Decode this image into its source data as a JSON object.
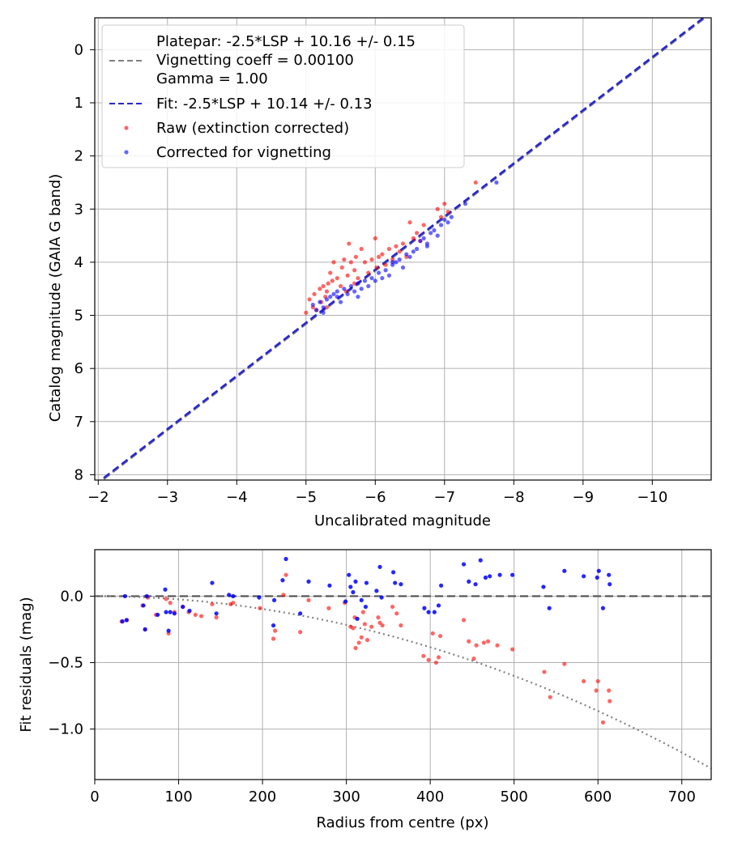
{
  "chart_data": [
    {
      "type": "scatter",
      "xlabel": "Uncalibrated magnitude",
      "ylabel": "Catalog magnitude (GAIA G band)",
      "xlim": [
        -1.95,
        -10.85
      ],
      "ylim": [
        8.1,
        -0.6
      ],
      "xticks": [
        -2,
        -3,
        -4,
        -5,
        -6,
        -7,
        -8,
        -9,
        -10
      ],
      "xtick_labels": [
        "−2",
        "−3",
        "−4",
        "−5",
        "−6",
        "−7",
        "−8",
        "−9",
        "−10"
      ],
      "yticks": [
        0,
        1,
        2,
        3,
        4,
        5,
        6,
        7,
        8
      ],
      "ytick_labels": [
        "0",
        "1",
        "2",
        "3",
        "4",
        "5",
        "6",
        "7",
        "8"
      ],
      "grid": true,
      "legend_position": "top-left",
      "legend": [
        {
          "label": "Platepar: -2.5*LSP + 10.16 +/- 0.15",
          "style": "dashed",
          "color": "#808080"
        },
        {
          "label": "Vignetting coeff = 0.00100",
          "style": "none",
          "color": "#808080"
        },
        {
          "label": "Gamma = 1.00",
          "style": "none",
          "color": "#808080"
        },
        {
          "label": "Fit: -2.5*LSP + 10.14 +/- 0.13",
          "style": "dashed",
          "color": "#2727d0"
        },
        {
          "label": "Raw (extinction corrected)",
          "style": "marker",
          "color": "#ff0000"
        },
        {
          "label": "Corrected for vignetting",
          "style": "marker",
          "color": "#0000ff"
        }
      ],
      "series": [
        {
          "name": "Platepar",
          "kind": "line",
          "slope": 1,
          "intercept": 10.16,
          "color": "#808080"
        },
        {
          "name": "Fit",
          "kind": "line",
          "slope": 1,
          "intercept": 10.14,
          "color": "#2727d0"
        },
        {
          "name": "Raw (extinction corrected)",
          "kind": "scatter",
          "color": "#ff0000",
          "points": [
            [
              -5.0,
              4.95
            ],
            [
              -5.05,
              4.7
            ],
            [
              -5.1,
              4.85
            ],
            [
              -5.12,
              4.6
            ],
            [
              -5.15,
              4.9
            ],
            [
              -5.2,
              4.5
            ],
            [
              -5.22,
              4.75
            ],
            [
              -5.25,
              4.45
            ],
            [
              -5.28,
              4.65
            ],
            [
              -5.3,
              4.55
            ],
            [
              -5.32,
              4.4
            ],
            [
              -5.35,
              4.2
            ],
            [
              -5.38,
              4.35
            ],
            [
              -5.4,
              4.0
            ],
            [
              -5.45,
              4.3
            ],
            [
              -5.5,
              4.45
            ],
            [
              -5.52,
              4.1
            ],
            [
              -5.55,
              3.95
            ],
            [
              -5.58,
              4.55
            ],
            [
              -5.6,
              4.25
            ],
            [
              -5.62,
              3.65
            ],
            [
              -5.65,
              4.0
            ],
            [
              -5.7,
              4.15
            ],
            [
              -5.72,
              3.9
            ],
            [
              -5.75,
              4.3
            ],
            [
              -5.8,
              3.75
            ],
            [
              -5.85,
              4.0
            ],
            [
              -5.9,
              4.2
            ],
            [
              -5.95,
              3.95
            ],
            [
              -6.0,
              3.55
            ],
            [
              -6.02,
              4.1
            ],
            [
              -6.05,
              3.9
            ],
            [
              -6.1,
              3.85
            ],
            [
              -6.15,
              4.05
            ],
            [
              -6.2,
              3.75
            ],
            [
              -6.25,
              3.95
            ],
            [
              -6.3,
              3.7
            ],
            [
              -6.35,
              3.8
            ],
            [
              -6.4,
              3.65
            ],
            [
              -6.45,
              3.9
            ],
            [
              -6.5,
              3.25
            ],
            [
              -6.55,
              3.55
            ],
            [
              -6.6,
              3.45
            ],
            [
              -6.65,
              3.6
            ],
            [
              -6.7,
              3.3
            ],
            [
              -6.9,
              3.0
            ],
            [
              -6.95,
              3.15
            ],
            [
              -7.0,
              2.9
            ],
            [
              -7.05,
              3.05
            ],
            [
              -7.45,
              2.5
            ],
            [
              -5.3,
              4.85
            ],
            [
              -5.7,
              4.4
            ]
          ]
        },
        {
          "name": "Corrected for vignetting",
          "kind": "scatter",
          "color": "#0000ff",
          "points": [
            [
              -5.1,
              4.8
            ],
            [
              -5.15,
              4.9
            ],
            [
              -5.2,
              4.75
            ],
            [
              -5.25,
              4.95
            ],
            [
              -5.3,
              4.7
            ],
            [
              -5.35,
              4.65
            ],
            [
              -5.4,
              4.6
            ],
            [
              -5.45,
              4.55
            ],
            [
              -5.5,
              4.75
            ],
            [
              -5.55,
              4.5
            ],
            [
              -5.6,
              4.6
            ],
            [
              -5.65,
              4.45
            ],
            [
              -5.7,
              4.55
            ],
            [
              -5.75,
              4.4
            ],
            [
              -5.8,
              4.5
            ],
            [
              -5.85,
              4.35
            ],
            [
              -5.9,
              4.45
            ],
            [
              -5.95,
              4.3
            ],
            [
              -6.0,
              4.35
            ],
            [
              -6.05,
              4.2
            ],
            [
              -6.1,
              4.3
            ],
            [
              -6.15,
              4.15
            ],
            [
              -6.2,
              4.25
            ],
            [
              -6.25,
              4.05
            ],
            [
              -6.3,
              4.0
            ],
            [
              -6.35,
              3.95
            ],
            [
              -6.4,
              4.1
            ],
            [
              -6.45,
              3.85
            ],
            [
              -6.5,
              3.9
            ],
            [
              -6.55,
              3.8
            ],
            [
              -6.6,
              3.75
            ],
            [
              -6.65,
              3.6
            ],
            [
              -6.7,
              3.55
            ],
            [
              -6.75,
              3.65
            ],
            [
              -6.8,
              3.45
            ],
            [
              -6.85,
              3.4
            ],
            [
              -6.9,
              3.5
            ],
            [
              -6.95,
              3.3
            ],
            [
              -7.0,
              3.2
            ],
            [
              -7.05,
              3.25
            ],
            [
              -7.1,
              3.15
            ],
            [
              -7.3,
              2.9
            ],
            [
              -7.75,
              2.5
            ],
            [
              -5.25,
              4.85
            ],
            [
              -5.45,
              4.65
            ],
            [
              -5.75,
              4.65
            ],
            [
              -6.25,
              4.0
            ],
            [
              -6.75,
              3.7
            ]
          ]
        }
      ]
    },
    {
      "type": "scatter",
      "xlabel": "Radius from centre (px)",
      "ylabel": "Fit residuals (mag)",
      "xlim": [
        0,
        735
      ],
      "ylim": [
        -1.38,
        0.35
      ],
      "xticks": [
        0,
        100,
        200,
        300,
        400,
        500,
        600,
        700
      ],
      "xtick_labels": [
        "0",
        "100",
        "200",
        "300",
        "400",
        "500",
        "600",
        "700"
      ],
      "yticks": [
        0.0,
        -0.5,
        -1.0
      ],
      "ytick_labels": [
        "0.0",
        "−0.5",
        "−1.0"
      ],
      "grid": true,
      "series": [
        {
          "name": "zero line",
          "kind": "hline",
          "y": 0,
          "color": "#505050"
        },
        {
          "name": "vignetting model",
          "kind": "curve",
          "coeff": 0.001,
          "color": "#808080"
        },
        {
          "name": "Raw residuals",
          "kind": "scatter",
          "color": "#ff0000",
          "points": [
            [
              32,
              -0.19
            ],
            [
              38,
              -0.18
            ],
            [
              57,
              -0.07
            ],
            [
              60,
              -0.25
            ],
            [
              63,
              -0.01
            ],
            [
              73,
              -0.14
            ],
            [
              85,
              -0.02
            ],
            [
              88,
              -0.28
            ],
            [
              90,
              -0.05
            ],
            [
              95,
              -0.12
            ],
            [
              105,
              -0.08
            ],
            [
              112,
              -0.12
            ],
            [
              120,
              -0.14
            ],
            [
              127,
              -0.15
            ],
            [
              140,
              -0.06
            ],
            [
              145,
              -0.16
            ],
            [
              162,
              -0.06
            ],
            [
              165,
              -0.05
            ],
            [
              197,
              -0.09
            ],
            [
              213,
              -0.32
            ],
            [
              215,
              -0.26
            ],
            [
              225,
              0.01
            ],
            [
              228,
              0.16
            ],
            [
              245,
              -0.27
            ],
            [
              255,
              -0.03
            ],
            [
              279,
              -0.09
            ],
            [
              298,
              -0.05
            ],
            [
              305,
              -0.23
            ],
            [
              308,
              -0.24
            ],
            [
              310,
              -0.16
            ],
            [
              311,
              -0.39
            ],
            [
              315,
              -0.35
            ],
            [
              318,
              -0.31
            ],
            [
              320,
              -0.12
            ],
            [
              322,
              -0.21
            ],
            [
              325,
              -0.33
            ],
            [
              330,
              -0.23
            ],
            [
              338,
              -0.16
            ],
            [
              340,
              -0.2
            ],
            [
              343,
              -0.22
            ],
            [
              355,
              -0.08
            ],
            [
              360,
              -0.13
            ],
            [
              365,
              -0.22
            ],
            [
              392,
              -0.45
            ],
            [
              398,
              -0.48
            ],
            [
              403,
              -0.28
            ],
            [
              407,
              -0.5
            ],
            [
              410,
              -0.46
            ],
            [
              412,
              -0.3
            ],
            [
              440,
              -0.18
            ],
            [
              446,
              -0.34
            ],
            [
              452,
              -0.47
            ],
            [
              455,
              -0.37
            ],
            [
              464,
              -0.35
            ],
            [
              469,
              -0.34
            ],
            [
              480,
              -0.37
            ],
            [
              498,
              -0.4
            ],
            [
              536,
              -0.57
            ],
            [
              543,
              -0.76
            ],
            [
              560,
              -0.51
            ],
            [
              583,
              -0.64
            ],
            [
              598,
              -0.71
            ],
            [
              600,
              -0.64
            ],
            [
              606,
              -0.95
            ],
            [
              613,
              -0.71
            ],
            [
              614,
              -0.79
            ]
          ]
        },
        {
          "name": "Corrected residuals",
          "kind": "scatter",
          "color": "#0000ff",
          "points": [
            [
              36,
              0.0
            ],
            [
              38,
              -0.18
            ],
            [
              33,
              -0.19
            ],
            [
              58,
              -0.07
            ],
            [
              60,
              -0.25
            ],
            [
              62,
              0.0
            ],
            [
              75,
              -0.14
            ],
            [
              84,
              0.05
            ],
            [
              85,
              -0.12
            ],
            [
              88,
              -0.26
            ],
            [
              90,
              -0.12
            ],
            [
              95,
              -0.13
            ],
            [
              105,
              -0.08
            ],
            [
              113,
              -0.11
            ],
            [
              140,
              0.1
            ],
            [
              145,
              -0.13
            ],
            [
              160,
              0.01
            ],
            [
              165,
              0.0
            ],
            [
              196,
              -0.01
            ],
            [
              213,
              -0.22
            ],
            [
              214,
              -0.03
            ],
            [
              224,
              0.12
            ],
            [
              228,
              0.28
            ],
            [
              245,
              -0.13
            ],
            [
              255,
              0.11
            ],
            [
              280,
              0.08
            ],
            [
              299,
              -0.04
            ],
            [
              303,
              0.16
            ],
            [
              305,
              0.07
            ],
            [
              308,
              0.03
            ],
            [
              311,
              0.11
            ],
            [
              313,
              -0.17
            ],
            [
              318,
              -0.03
            ],
            [
              323,
              -0.08
            ],
            [
              324,
              0.1
            ],
            [
              336,
              0.04
            ],
            [
              340,
              0.22
            ],
            [
              342,
              -0.01
            ],
            [
              356,
              0.18
            ],
            [
              358,
              0.1
            ],
            [
              365,
              0.09
            ],
            [
              393,
              -0.09
            ],
            [
              398,
              -0.12
            ],
            [
              405,
              -0.12
            ],
            [
              410,
              -0.07
            ],
            [
              413,
              0.08
            ],
            [
              440,
              0.24
            ],
            [
              446,
              0.11
            ],
            [
              454,
              0.09
            ],
            [
              460,
              0.27
            ],
            [
              466,
              0.14
            ],
            [
              471,
              0.15
            ],
            [
              483,
              0.16
            ],
            [
              498,
              0.16
            ],
            [
              535,
              0.07
            ],
            [
              542,
              -0.09
            ],
            [
              560,
              0.19
            ],
            [
              583,
              0.15
            ],
            [
              599,
              0.14
            ],
            [
              601,
              0.19
            ],
            [
              606,
              -0.09
            ],
            [
              613,
              0.16
            ],
            [
              614,
              0.09
            ]
          ]
        }
      ]
    }
  ]
}
